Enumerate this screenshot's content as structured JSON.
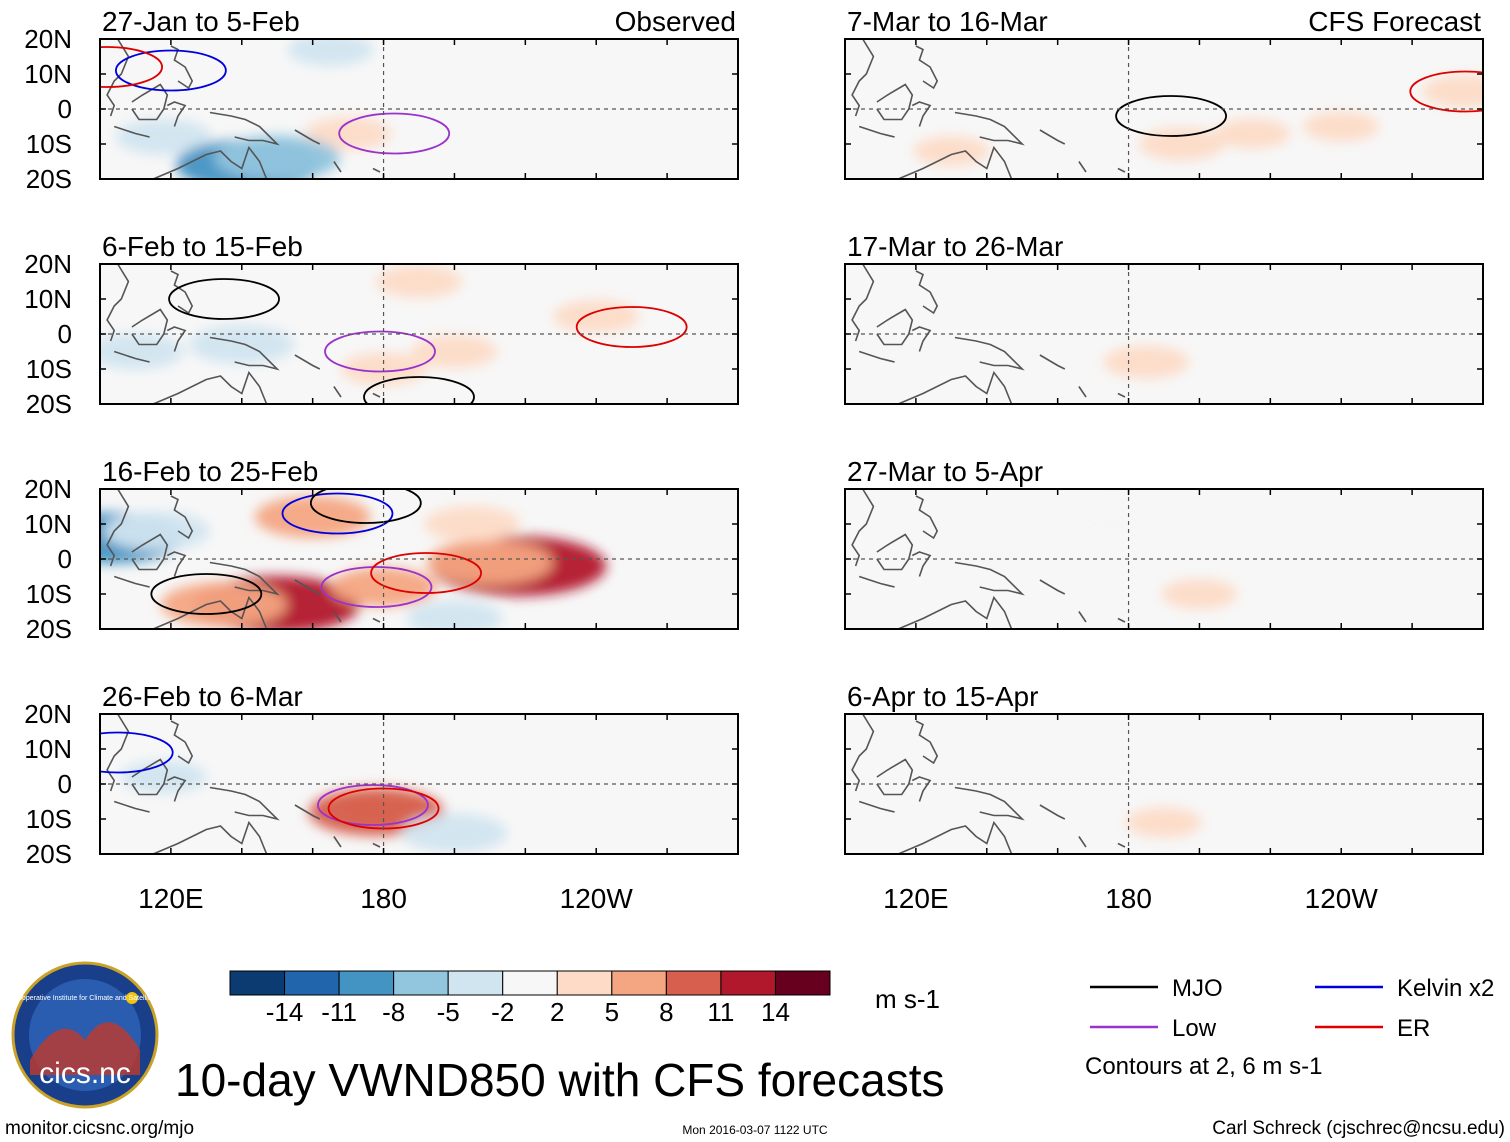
{
  "colors": {
    "scale": [
      "#0b3b70",
      "#2166ac",
      "#4393c3",
      "#92c5de",
      "#d1e5f0",
      "#f7f7f7",
      "#fddbc7",
      "#f4a582",
      "#d6604d",
      "#b2182b",
      "#67001f"
    ],
    "mjo": "#000000",
    "kelvin": "#0000dd",
    "low": "#9933cc",
    "er": "#dd0000",
    "land": "#555555",
    "frame": "#000000",
    "background": "#f7f7f7"
  },
  "chart_data": {
    "type": "heatmap",
    "title": "10-day VWND850 with CFS forecasts",
    "variable": "VWND850",
    "units": "m s-1",
    "lat_ticks": [
      "20N",
      "10N",
      "0",
      "10S",
      "20S"
    ],
    "lon_ticks": [
      "120E",
      "180",
      "120W"
    ],
    "colorbar": {
      "ticks": [
        "-14",
        "-11",
        "-8",
        "-5",
        "-2",
        "2",
        "5",
        "8",
        "11",
        "14"
      ],
      "levels": [
        -14,
        -11,
        -8,
        -5,
        -2,
        2,
        5,
        8,
        11,
        14
      ]
    },
    "legend": [
      {
        "key": "mjo",
        "label": "MJO"
      },
      {
        "key": "kelvin",
        "label": "Kelvin x2"
      },
      {
        "key": "low",
        "label": "Low"
      },
      {
        "key": "er",
        "label": "ER"
      }
    ],
    "contour_note": "Contours at 2, 6 m s-1",
    "panels": [
      {
        "id": "obs1",
        "period": "27-Jan to 5-Feb",
        "tag": "Observed",
        "column": "observed",
        "anomalies": [
          {
            "lon": 170,
            "lat": -7,
            "value": 3
          },
          {
            "lon": 118,
            "lat": -8,
            "value": -4
          },
          {
            "lon": 142,
            "lat": -16,
            "value": -9
          },
          {
            "lon": 150,
            "lat": -14,
            "value": -7
          },
          {
            "lon": 165,
            "lat": 17,
            "value": -3
          },
          {
            "lon": 200,
            "lat": -10,
            "value": -2
          }
        ],
        "contours": [
          {
            "wave": "low",
            "lon": 183,
            "lat": -7
          },
          {
            "wave": "kelvin",
            "lon": 120,
            "lat": 11
          },
          {
            "wave": "er",
            "lon": 102,
            "lat": 12
          }
        ]
      },
      {
        "id": "obs2",
        "period": "6-Feb to 15-Feb",
        "tag": "",
        "column": "observed",
        "anomalies": [
          {
            "lon": 140,
            "lat": -3,
            "value": -5
          },
          {
            "lon": 110,
            "lat": -5,
            "value": -4
          },
          {
            "lon": 200,
            "lat": -5,
            "value": 3
          },
          {
            "lon": 180,
            "lat": -10,
            "value": 3
          },
          {
            "lon": 240,
            "lat": 5,
            "value": 3
          },
          {
            "lon": 190,
            "lat": 15,
            "value": 3
          }
        ],
        "contours": [
          {
            "wave": "mjo",
            "lon": 135,
            "lat": 10
          },
          {
            "wave": "low",
            "lon": 179,
            "lat": -5
          },
          {
            "wave": "er",
            "lon": 250,
            "lat": 2
          },
          {
            "wave": "mjo",
            "lon": 190,
            "lat": -18
          }
        ]
      },
      {
        "id": "obs3",
        "period": "16-Feb to 25-Feb",
        "tag": "",
        "column": "observed",
        "anomalies": [
          {
            "lon": 218,
            "lat": -2,
            "value": 12
          },
          {
            "lon": 210,
            "lat": -1,
            "value": 7
          },
          {
            "lon": 150,
            "lat": -13,
            "value": 11
          },
          {
            "lon": 135,
            "lat": -13,
            "value": 7
          },
          {
            "lon": 180,
            "lat": -8,
            "value": 5
          },
          {
            "lon": 160,
            "lat": 12,
            "value": 6
          },
          {
            "lon": 205,
            "lat": 10,
            "value": 4
          },
          {
            "lon": 103,
            "lat": 6,
            "value": -9
          },
          {
            "lon": 116,
            "lat": 8,
            "value": -5
          },
          {
            "lon": 200,
            "lat": -17,
            "value": -4
          }
        ],
        "contours": [
          {
            "wave": "kelvin",
            "lon": 167,
            "lat": 13
          },
          {
            "wave": "low",
            "lon": 178,
            "lat": -8
          },
          {
            "wave": "er",
            "lon": 192,
            "lat": -4
          },
          {
            "wave": "mjo",
            "lon": 175,
            "lat": 16
          },
          {
            "wave": "mjo",
            "lon": 130,
            "lat": -10
          }
        ]
      },
      {
        "id": "obs4",
        "period": "26-Feb to 6-Mar",
        "tag": "",
        "column": "observed",
        "anomalies": [
          {
            "lon": 180,
            "lat": -7,
            "value": 5
          },
          {
            "lon": 178,
            "lat": -8,
            "value": 8
          },
          {
            "lon": 118,
            "lat": 2,
            "value": -3
          },
          {
            "lon": 200,
            "lat": -14,
            "value": -5
          },
          {
            "lon": 160,
            "lat": 10,
            "value": -2
          }
        ],
        "contours": [
          {
            "wave": "kelvin",
            "lon": 105,
            "lat": 9
          },
          {
            "wave": "low",
            "lon": 177,
            "lat": -6
          },
          {
            "wave": "er",
            "lon": 180,
            "lat": -7
          }
        ]
      },
      {
        "id": "fc1",
        "period": "7-Mar to 16-Mar",
        "tag": "CFS Forecast",
        "column": "forecast",
        "anomalies": [
          {
            "lon": 195,
            "lat": -10,
            "value": 3
          },
          {
            "lon": 215,
            "lat": -7,
            "value": 2
          },
          {
            "lon": 275,
            "lat": 5,
            "value": 3
          },
          {
            "lon": 130,
            "lat": -12,
            "value": 2
          },
          {
            "lon": 240,
            "lat": -5,
            "value": 2
          }
        ],
        "contours": [
          {
            "wave": "mjo",
            "lon": 192,
            "lat": -2
          },
          {
            "wave": "er",
            "lon": 275,
            "lat": 5
          }
        ]
      },
      {
        "id": "fc2",
        "period": "17-Mar to 26-Mar",
        "tag": "",
        "column": "forecast",
        "anomalies": [
          {
            "lon": 185,
            "lat": -8,
            "value": 3
          },
          {
            "lon": 150,
            "lat": -3,
            "value": -2
          },
          {
            "lon": 180,
            "lat": 8,
            "value": -2
          },
          {
            "lon": 110,
            "lat": -3,
            "value": -2
          }
        ],
        "contours": []
      },
      {
        "id": "fc3",
        "period": "27-Mar to 5-Apr",
        "tag": "",
        "column": "forecast",
        "anomalies": [
          {
            "lon": 175,
            "lat": 10,
            "value": -2
          },
          {
            "lon": 200,
            "lat": -10,
            "value": 2
          },
          {
            "lon": 140,
            "lat": 0,
            "value": -2
          }
        ],
        "contours": []
      },
      {
        "id": "fc4",
        "period": "6-Apr to 15-Apr",
        "tag": "",
        "column": "forecast",
        "anomalies": [
          {
            "lon": 185,
            "lat": 3,
            "value": -2
          },
          {
            "lon": 190,
            "lat": -11,
            "value": 2
          }
        ],
        "contours": []
      }
    ]
  },
  "footer": {
    "logo_text": "cics.nc",
    "logo_ring": "Cooperative Institute for Climate and Satellites",
    "url": "monitor.cicsnc.org/mjo",
    "timestamp": "Mon 2016-03-07 1122 UTC",
    "credit": "Carl Schreck (cjschrec@ncsu.edu)"
  }
}
